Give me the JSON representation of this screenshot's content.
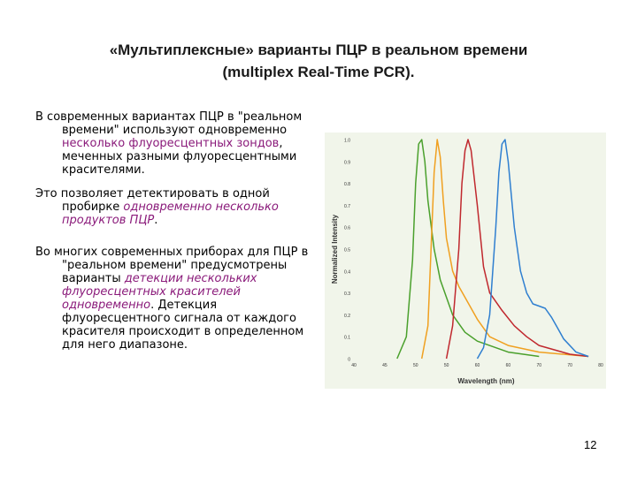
{
  "slide": {
    "title_line1": "«Мультиплексные» варианты ПЦР в реальном времени",
    "title_line2": "(multiplex Real-Time PCR).",
    "page_number": "12"
  },
  "paragraphs": [
    {
      "segments": [
        {
          "text": "В современных вариантах ПЦР в \"реальном времени\" используют одновременно ",
          "style": "plain"
        },
        {
          "text": "несколько флуоресцентных зондов",
          "style": "highlight"
        },
        {
          "text": ", меченных разными флуоресцентными красителями.",
          "style": "plain"
        }
      ]
    },
    {
      "segments": [
        {
          "text": "Это позволяет детектировать в одной пробирке ",
          "style": "plain"
        },
        {
          "text": "одновременно несколько продуктов ПЦР",
          "style": "highlight-italic"
        },
        {
          "text": ".",
          "style": "plain"
        }
      ]
    },
    {
      "segments": [
        {
          "text": "Во многих современных приборах для ПЦР в \"реальном времени\" предусмотрены варианты ",
          "style": "plain"
        },
        {
          "text": "детекции нескольких флуоресцентных красителей одновременно",
          "style": "highlight-italic"
        },
        {
          "text": ". Детекция флуоресцентного сигнала от каждого красителя происходит в определенном для него диапазоне.",
          "style": "plain"
        }
      ]
    }
  ],
  "chart_data": {
    "type": "line",
    "title": "",
    "xlabel": "Wavelength (nm)",
    "ylabel": "Normalized Intensity",
    "xlim": [
      400,
      800
    ],
    "ylim": [
      0,
      1
    ],
    "x_ticks": [
      "40",
      "45",
      "50",
      "50",
      "60",
      "60",
      "70",
      "70",
      "80"
    ],
    "y_ticks": [
      "1.0",
      "0.9",
      "0.8",
      "0.7",
      "0.6",
      "0.5",
      "0.4",
      "0.3",
      "0.2",
      "0.1",
      "0"
    ],
    "grid": false,
    "background": "#f1f5ea",
    "series": [
      {
        "color": "#4aa02c",
        "x": [
          470,
          485,
          495,
          500,
          505,
          510,
          515,
          520,
          530,
          540,
          560,
          580,
          600,
          650,
          700
        ],
        "y": [
          0,
          0.1,
          0.45,
          0.8,
          0.98,
          1.0,
          0.9,
          0.72,
          0.5,
          0.36,
          0.2,
          0.12,
          0.08,
          0.03,
          0.01
        ]
      },
      {
        "color": "#f0a020",
        "x": [
          510,
          520,
          525,
          530,
          535,
          540,
          545,
          550,
          560,
          570,
          580,
          600,
          620,
          650,
          700,
          780
        ],
        "y": [
          0,
          0.15,
          0.5,
          0.85,
          1.0,
          0.92,
          0.72,
          0.55,
          0.4,
          0.33,
          0.28,
          0.18,
          0.1,
          0.06,
          0.03,
          0.01
        ]
      },
      {
        "color": "#c0282e",
        "x": [
          550,
          560,
          570,
          575,
          580,
          585,
          590,
          600,
          610,
          620,
          640,
          660,
          680,
          700,
          750,
          780
        ],
        "y": [
          0,
          0.15,
          0.5,
          0.8,
          0.95,
          1.0,
          0.95,
          0.7,
          0.42,
          0.3,
          0.22,
          0.15,
          0.1,
          0.06,
          0.02,
          0.01
        ]
      },
      {
        "color": "#2f7fd0",
        "x": [
          600,
          610,
          620,
          630,
          635,
          640,
          645,
          650,
          660,
          670,
          680,
          690,
          700,
          710,
          720,
          730,
          740,
          760,
          780
        ],
        "y": [
          0,
          0.05,
          0.2,
          0.6,
          0.85,
          0.98,
          1.0,
          0.9,
          0.6,
          0.4,
          0.3,
          0.25,
          0.24,
          0.23,
          0.19,
          0.14,
          0.09,
          0.03,
          0.01
        ]
      }
    ]
  }
}
